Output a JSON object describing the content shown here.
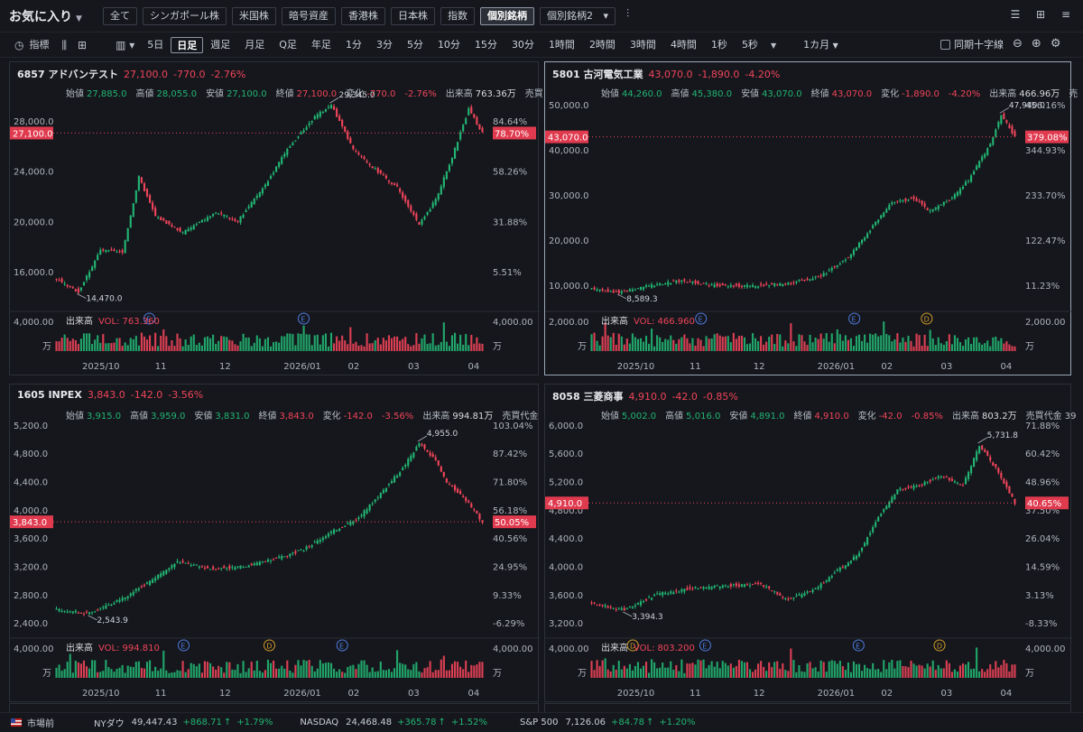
{
  "header": {
    "favorites_label": "お気に入り",
    "categories": [
      "全て",
      "シンガポール株",
      "米国株",
      "暗号資産",
      "香港株",
      "日本株",
      "指数",
      "個別銘柄"
    ],
    "active_category": "個別銘柄",
    "watchlist_select": "個別銘柄2"
  },
  "toolbar": {
    "indicator_label": "指標",
    "intervals": [
      "5日",
      "日足",
      "週足",
      "月足",
      "Q足",
      "年足",
      "1分",
      "3分",
      "5分",
      "10分",
      "15分",
      "30分",
      "1時間",
      "2時間",
      "3時間",
      "4時間",
      "1秒",
      "5秒"
    ],
    "active_interval": "日足",
    "range_select": "1カ月",
    "sync_crosshair_label": "同期十字線"
  },
  "labels": {
    "open": "始値",
    "high": "高値",
    "low": "安値",
    "close": "終値",
    "change": "変化",
    "volume": "出来高",
    "vol_prefix": "VOL:",
    "vol_unit": "万"
  },
  "charts": [
    {
      "title": "6857 アドバンテスト",
      "price": "27,100.0",
      "change": "-770.0",
      "pct": "-2.76%",
      "open": "27,885.0",
      "high": "28,055.0",
      "low": "27,100.0",
      "close": "27,100.0",
      "chg": "-770.0",
      "chg_pct": "-2.76%",
      "volume": "763.36万",
      "tail": "売買",
      "vol_value": "763.360",
      "y_ticks": [
        "28,000.0",
        "24,000.0",
        "20,000.0",
        "16,000.0"
      ],
      "y_values": [
        28000,
        24000,
        20000,
        16000
      ],
      "pct_ticks": [
        "84.64%",
        "58.26%",
        "31.88%",
        "5.51%"
      ],
      "price_tag": "27,100.0",
      "pct_tag": "78.70%",
      "hi_label": "29,345.0",
      "lo_label": "14,470.0",
      "vol_tick": "4,000.00",
      "x_ticks": [
        "2025/10",
        "11",
        "12",
        "2026/01",
        "02",
        "03",
        "04"
      ],
      "events": [
        "E",
        "E"
      ],
      "chart_data": {
        "type": "candlestick",
        "ylim": [
          13500,
          30000
        ],
        "keypoints": [
          [
            0,
            15500
          ],
          [
            8,
            14470
          ],
          [
            16,
            17800
          ],
          [
            24,
            17600
          ],
          [
            30,
            23600
          ],
          [
            36,
            20500
          ],
          [
            46,
            19200
          ],
          [
            58,
            20800
          ],
          [
            66,
            20100
          ],
          [
            76,
            23000
          ],
          [
            84,
            25800
          ],
          [
            94,
            28400
          ],
          [
            100,
            29345
          ],
          [
            108,
            25800
          ],
          [
            116,
            24200
          ],
          [
            124,
            22800
          ],
          [
            132,
            19800
          ],
          [
            138,
            21800
          ],
          [
            144,
            25200
          ],
          [
            150,
            29000
          ],
          [
            155,
            27100
          ]
        ],
        "last": 27100
      }
    },
    {
      "title": "5801 古河電気工業",
      "price": "43,070.0",
      "change": "-1,890.0",
      "pct": "-4.20%",
      "open": "44,260.0",
      "high": "45,380.0",
      "low": "43,070.0",
      "close": "43,070.0",
      "chg": "-1,890.0",
      "chg_pct": "-4.20%",
      "volume": "466.96万",
      "tail": "売",
      "vol_value": "466.960",
      "y_ticks": [
        "50,000.0",
        "40,000.0",
        "30,000.0",
        "20,000.0",
        "10,000.0"
      ],
      "y_values": [
        50000,
        40000,
        30000,
        20000,
        10000
      ],
      "pct_ticks": [
        "456.16%",
        "344.93%",
        "233.70%",
        "122.47%",
        "11.23%"
      ],
      "price_tag": "43,070.0",
      "pct_tag": "379.08%",
      "hi_label": "47,940.0",
      "lo_label": "8,589.3",
      "vol_tick": "2,000.00",
      "x_ticks": [
        "2025/10",
        "11",
        "12",
        "2026/01",
        "02",
        "03",
        "04"
      ],
      "events": [
        "E",
        "E",
        "D"
      ],
      "chart_data": {
        "type": "candlestick",
        "ylim": [
          6000,
          52000
        ],
        "keypoints": [
          [
            0,
            9500
          ],
          [
            10,
            8589
          ],
          [
            22,
            10200
          ],
          [
            32,
            11200
          ],
          [
            44,
            10200
          ],
          [
            58,
            10000
          ],
          [
            72,
            10600
          ],
          [
            84,
            12200
          ],
          [
            94,
            16500
          ],
          [
            102,
            22500
          ],
          [
            110,
            28500
          ],
          [
            118,
            29500
          ],
          [
            124,
            26500
          ],
          [
            132,
            29500
          ],
          [
            138,
            33500
          ],
          [
            146,
            41500
          ],
          [
            150,
            47940
          ],
          [
            155,
            43070
          ]
        ],
        "last": 43070
      }
    },
    {
      "title": "1605 INPEX",
      "price": "3,843.0",
      "change": "-142.0",
      "pct": "-3.56%",
      "open": "3,915.0",
      "high": "3,959.0",
      "low": "3,831.0",
      "close": "3,843.0",
      "chg": "-142.0",
      "chg_pct": "-3.56%",
      "volume": "994.81万",
      "tail": "売買代金",
      "vol_value": "994.810",
      "y_ticks": [
        "5,200.0",
        "4,800.0",
        "4,400.0",
        "4,000.0",
        "3,600.0",
        "3,200.0",
        "2,800.0",
        "2,400.0"
      ],
      "y_values": [
        5200,
        4800,
        4400,
        4000,
        3600,
        3200,
        2800,
        2400
      ],
      "pct_ticks": [
        "103.04%",
        "87.42%",
        "71.80%",
        "56.18%",
        "40.56%",
        "24.95%",
        "9.33%",
        "-6.29%"
      ],
      "price_tag": "3,843.0",
      "pct_tag": "50.05%",
      "hi_label": "4,955.0",
      "lo_label": "2,543.9",
      "vol_tick": "4,000.00",
      "x_ticks": [
        "2025/10",
        "11",
        "12",
        "2026/01",
        "02",
        "03",
        "04"
      ],
      "events": [
        "E",
        "D",
        "E"
      ],
      "chart_data": {
        "type": "candlestick",
        "ylim": [
          2300,
          5300
        ],
        "keypoints": [
          [
            0,
            2600
          ],
          [
            12,
            2544
          ],
          [
            24,
            2760
          ],
          [
            36,
            3050
          ],
          [
            44,
            3280
          ],
          [
            56,
            3180
          ],
          [
            66,
            3200
          ],
          [
            78,
            3300
          ],
          [
            90,
            3450
          ],
          [
            100,
            3700
          ],
          [
            110,
            3900
          ],
          [
            118,
            4250
          ],
          [
            126,
            4600
          ],
          [
            132,
            4955
          ],
          [
            138,
            4700
          ],
          [
            142,
            4400
          ],
          [
            148,
            4200
          ],
          [
            155,
            3843
          ]
        ],
        "last": 3843
      }
    },
    {
      "title": "8058 三菱商事",
      "price": "4,910.0",
      "change": "-42.0",
      "pct": "-0.85%",
      "open": "5,002.0",
      "high": "5,016.0",
      "low": "4,891.0",
      "close": "4,910.0",
      "chg": "-42.0",
      "chg_pct": "-0.85%",
      "volume": "803.2万",
      "tail": "売買代金 39",
      "vol_value": "803.200",
      "y_ticks": [
        "6,000.0",
        "5,600.0",
        "5,200.0",
        "4,800.0",
        "4,400.0",
        "4,000.0",
        "3,600.0",
        "3,200.0"
      ],
      "y_values": [
        6000,
        5600,
        5200,
        4800,
        4400,
        4000,
        3600,
        3200
      ],
      "pct_ticks": [
        "71.88%",
        "60.42%",
        "48.96%",
        "37.50%",
        "26.04%",
        "14.59%",
        "3.13%",
        "-8.33%"
      ],
      "price_tag": "4,910.0",
      "pct_tag": "40.65%",
      "hi_label": "5,731.8",
      "lo_label": "3,394.3",
      "vol_tick": "4,000.00",
      "x_ticks": [
        "2025/10",
        "11",
        "12",
        "2026/01",
        "02",
        "03",
        "04"
      ],
      "events": [
        "D",
        "E",
        "E",
        "D"
      ],
      "chart_data": {
        "type": "candlestick",
        "ylim": [
          3100,
          6100
        ],
        "keypoints": [
          [
            0,
            3500
          ],
          [
            12,
            3394
          ],
          [
            24,
            3620
          ],
          [
            36,
            3700
          ],
          [
            50,
            3740
          ],
          [
            62,
            3760
          ],
          [
            72,
            3540
          ],
          [
            82,
            3700
          ],
          [
            90,
            3950
          ],
          [
            98,
            4200
          ],
          [
            104,
            4650
          ],
          [
            112,
            5100
          ],
          [
            120,
            5150
          ],
          [
            128,
            5300
          ],
          [
            136,
            5150
          ],
          [
            142,
            5731
          ],
          [
            148,
            5400
          ],
          [
            155,
            4910
          ]
        ],
        "last": 4910
      }
    }
  ],
  "status": {
    "market_state": "市場前",
    "indices": [
      {
        "name": "NYダウ",
        "value": "49,447.43",
        "change": "+868.71",
        "pct": "+1.79%"
      },
      {
        "name": "NASDAQ",
        "value": "24,468.48",
        "change": "+365.78",
        "pct": "+1.52%"
      },
      {
        "name": "S&P 500",
        "value": "7,126.06",
        "change": "+84.78",
        "pct": "+1.20%"
      }
    ]
  }
}
